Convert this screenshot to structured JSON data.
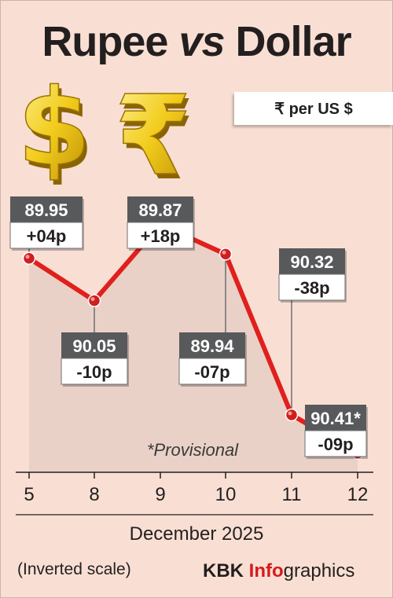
{
  "title": {
    "part1": "Rupee",
    "part2": "vs",
    "part3": "Dollar"
  },
  "unit_label": "₹  per US $",
  "footnote": "*Provisional",
  "scale_note": "(Inverted scale)",
  "credit": {
    "brand": "KBK",
    "accent": "Info",
    "rest": "graphics"
  },
  "icons": [
    "dollar-sign-icon",
    "rupee-sign-icon"
  ],
  "colors": {
    "background": "#f9dfd3",
    "line": "#e0201d",
    "marker": "#cf1f1f",
    "value_box": "#58595b",
    "accent": "#d7191c"
  },
  "chart_data": {
    "type": "line",
    "xlabel": "December 2025",
    "categories": [
      "5",
      "8",
      "9",
      "10",
      "11",
      "12"
    ],
    "values": [
      89.95,
      90.05,
      89.87,
      89.94,
      90.32,
      90.41
    ],
    "value_labels": [
      "89.95",
      "90.05",
      "89.87",
      "89.94",
      "90.32",
      "90.41*"
    ],
    "changes": [
      "+04p",
      "-10p",
      "+18p",
      "-07p",
      "-38p",
      "-09p"
    ],
    "inverted_y": true,
    "ylim": [
      89.8,
      90.45
    ],
    "grid": false
  }
}
